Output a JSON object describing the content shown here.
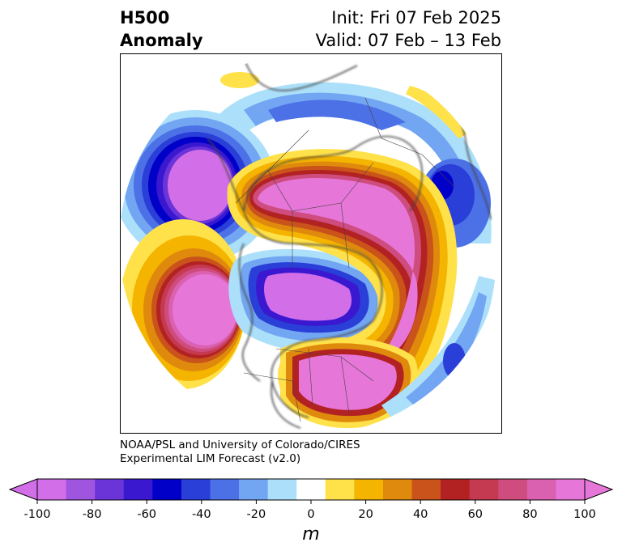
{
  "title": {
    "left_line1": "H500",
    "left_line2": "Anomaly",
    "init": "Init: Fri 07 Feb 2025",
    "valid": "Valid: 07 Feb – 13 Feb"
  },
  "credit": {
    "line1": "NOAA/PSL and University of Colorado/CIRES",
    "line2": "Experimental LIM Forecast (v2.0)"
  },
  "colorbar": {
    "unit": "m",
    "range": [
      -100,
      100
    ],
    "extend": "both",
    "tick_labels": [
      "-100",
      "-80",
      "-60",
      "-40",
      "-20",
      "0",
      "20",
      "40",
      "60",
      "80",
      "100"
    ],
    "colors": [
      "#d26ee8",
      "#9f55e0",
      "#6a34d8",
      "#3a18d0",
      "#0000c8",
      "#2a3ed8",
      "#4c70e6",
      "#72a6f2",
      "#ace0fa",
      "#ffffff",
      "#ffe14a",
      "#f4b400",
      "#df8a0d",
      "#c9531a",
      "#b32222",
      "#c53a50",
      "#cf4c7e",
      "#da60b0",
      "#e676d8"
    ],
    "under_color": "#d26ee8",
    "over_color": "#e676d8"
  },
  "map": {
    "projection": "north polar stereographic",
    "features": [
      "coastlines",
      "country borders",
      "state/province borders"
    ],
    "anomaly_centers": [
      {
        "region": "Western North Pacific",
        "sign": "negative"
      },
      {
        "region": "Alaska / Gulf of Alaska",
        "sign": "negative"
      },
      {
        "region": "Eastern Pacific subtropics",
        "sign": "positive"
      },
      {
        "region": "Arctic / Canada / Greenland",
        "sign": "positive"
      },
      {
        "region": "Southeastern United States",
        "sign": "positive"
      },
      {
        "region": "Western Atlantic / Europe",
        "sign": "negative"
      }
    ]
  }
}
